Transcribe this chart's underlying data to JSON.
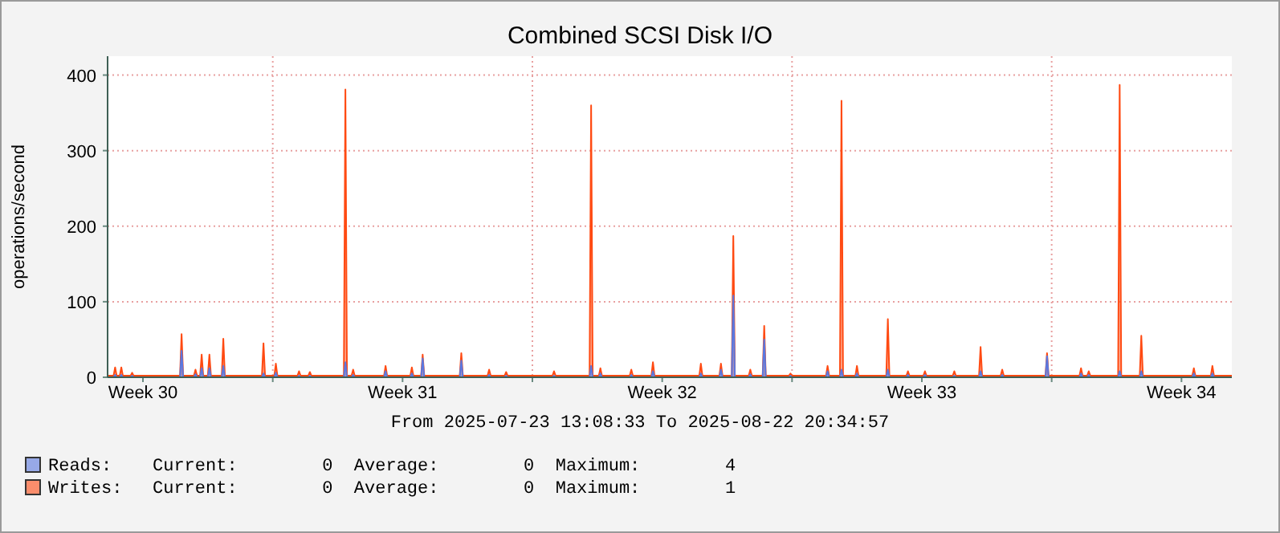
{
  "chart_data": {
    "type": "area",
    "title": "Combined SCSI Disk I/O",
    "ylabel": "operations/second",
    "annotations": [
      "From 2025-07-23 13:08:33 To 2025-08-22 20:34:57",
      "Current:        0  Average:        0  Maximum:        4",
      "Current:        0  Average:        0  Maximum:        1"
    ],
    "xlim": [
      "2025-07-23T13:08",
      "2025-08-22T20:34"
    ],
    "xticks": [
      {
        "value": "2025-07-24T12:00",
        "label": "Week 30"
      },
      {
        "value": "2025-07-28T00:00",
        "label": null
      },
      {
        "value": "2025-07-31T12:00",
        "label": "Week 31"
      },
      {
        "value": "2025-08-04T00:00",
        "label": null
      },
      {
        "value": "2025-08-07T12:00",
        "label": "Week 32"
      },
      {
        "value": "2025-08-11T00:00",
        "label": null
      },
      {
        "value": "2025-08-14T12:00",
        "label": "Week 33"
      },
      {
        "value": "2025-08-18T00:00",
        "label": null
      },
      {
        "value": "2025-08-21T12:00",
        "label": "Week 34"
      }
    ],
    "ylim": [
      0,
      425
    ],
    "yticks": [
      0,
      100,
      200,
      300,
      400
    ],
    "grid": true,
    "legend": "bottom left",
    "x": [
      "2025-07-23T13:08",
      "2025-07-23T17:00",
      "2025-07-23T18:00",
      "2025-07-23T19:00",
      "2025-07-23T21:00",
      "2025-07-23T22:00",
      "2025-07-23T23:00",
      "2025-07-24T04:00",
      "2025-07-24T05:00",
      "2025-07-24T06:00",
      "2025-07-25T12:00",
      "2025-07-25T13:00",
      "2025-07-25T14:00",
      "2025-07-25T21:00",
      "2025-07-25T22:00",
      "2025-07-25T23:00",
      "2025-07-26T01:00",
      "2025-07-26T02:00",
      "2025-07-26T03:00",
      "2025-07-26T06:00",
      "2025-07-26T07:00",
      "2025-07-26T08:00",
      "2025-07-26T15:00",
      "2025-07-26T16:00",
      "2025-07-26T17:00",
      "2025-07-27T17:00",
      "2025-07-27T18:00",
      "2025-07-27T19:00",
      "2025-07-28T01:00",
      "2025-07-28T02:00",
      "2025-07-28T03:00",
      "2025-07-28T16:00",
      "2025-07-28T17:00",
      "2025-07-28T18:00",
      "2025-07-28T23:00",
      "2025-07-29T00:00",
      "2025-07-29T01:00",
      "2025-07-29T22:00",
      "2025-07-29T23:00",
      "2025-07-30T00:00",
      "2025-07-30T03:00",
      "2025-07-30T04:00",
      "2025-07-30T05:00",
      "2025-07-31T00:00",
      "2025-07-31T01:00",
      "2025-07-31T02:00",
      "2025-07-31T17:00",
      "2025-07-31T18:00",
      "2025-07-31T19:00",
      "2025-08-01T00:00",
      "2025-08-01T01:00",
      "2025-08-01T02:00",
      "2025-08-02T01:00",
      "2025-08-02T02:00",
      "2025-08-02T03:00",
      "2025-08-02T19:00",
      "2025-08-02T20:00",
      "2025-08-02T21:00",
      "2025-08-03T06:00",
      "2025-08-03T07:00",
      "2025-08-03T08:00",
      "2025-08-04T13:00",
      "2025-08-04T14:00",
      "2025-08-04T15:00",
      "2025-08-05T13:00",
      "2025-08-05T14:00",
      "2025-08-05T15:00",
      "2025-08-05T19:00",
      "2025-08-05T20:00",
      "2025-08-05T21:00",
      "2025-08-06T15:00",
      "2025-08-06T16:00",
      "2025-08-06T17:00",
      "2025-08-07T05:00",
      "2025-08-07T06:00",
      "2025-08-07T07:00",
      "2025-08-08T12:00",
      "2025-08-08T13:00",
      "2025-08-08T14:00",
      "2025-08-09T01:00",
      "2025-08-09T02:00",
      "2025-08-09T03:00",
      "2025-08-09T09:00",
      "2025-08-09T10:00",
      "2025-08-09T11:00",
      "2025-08-09T20:00",
      "2025-08-09T21:00",
      "2025-08-09T22:00",
      "2025-08-10T05:00",
      "2025-08-10T06:00",
      "2025-08-10T07:00",
      "2025-08-10T22:00",
      "2025-08-10T23:00",
      "2025-08-11T00:00",
      "2025-08-11T22:00",
      "2025-08-11T23:00",
      "2025-08-12T00:00",
      "2025-08-12T07:00",
      "2025-08-12T08:00",
      "2025-08-12T09:00",
      "2025-08-12T17:00",
      "2025-08-12T18:00",
      "2025-08-12T19:00",
      "2025-08-13T13:00",
      "2025-08-13T14:00",
      "2025-08-13T15:00",
      "2025-08-14T02:00",
      "2025-08-14T03:00",
      "2025-08-14T04:00",
      "2025-08-14T13:00",
      "2025-08-14T14:00",
      "2025-08-14T15:00",
      "2025-08-15T08:00",
      "2025-08-15T09:00",
      "2025-08-15T10:00",
      "2025-08-16T01:00",
      "2025-08-16T02:00",
      "2025-08-16T03:00",
      "2025-08-16T15:00",
      "2025-08-16T16:00",
      "2025-08-16T17:00",
      "2025-08-17T20:00",
      "2025-08-17T21:00",
      "2025-08-17T22:00",
      "2025-08-18T18:00",
      "2025-08-18T19:00",
      "2025-08-18T20:00",
      "2025-08-18T23:00",
      "2025-08-19T00:00",
      "2025-08-19T01:00",
      "2025-08-19T19:00",
      "2025-08-19T20:00",
      "2025-08-19T21:00",
      "2025-08-20T09:00",
      "2025-08-20T10:00",
      "2025-08-20T11:00",
      "2025-08-21T19:00",
      "2025-08-21T20:00",
      "2025-08-21T21:00",
      "2025-08-22T07:00",
      "2025-08-22T08:00",
      "2025-08-22T09:00",
      "2025-08-22T20:34"
    ],
    "series": [
      {
        "name": "Writes:",
        "color": "#ff4a12",
        "values": [
          2,
          2,
          13,
          2,
          2,
          13,
          2,
          2,
          6,
          2,
          2,
          57,
          2,
          2,
          10,
          2,
          2,
          30,
          2,
          2,
          30,
          2,
          2,
          51,
          2,
          2,
          45,
          2,
          2,
          18,
          2,
          2,
          8,
          2,
          2,
          7,
          2,
          2,
          381,
          2,
          2,
          10,
          2,
          2,
          15,
          2,
          2,
          13,
          2,
          2,
          30,
          2,
          2,
          32,
          2,
          2,
          10,
          2,
          2,
          7,
          2,
          2,
          8,
          2,
          2,
          360,
          2,
          2,
          12,
          2,
          2,
          10,
          2,
          2,
          20,
          2,
          2,
          18,
          2,
          2,
          18,
          2,
          2,
          187,
          2,
          2,
          10,
          2,
          2,
          68,
          2,
          2,
          5,
          2,
          2,
          15,
          2,
          2,
          366,
          2,
          2,
          15,
          2,
          2,
          77,
          2,
          2,
          8,
          2,
          2,
          8,
          2,
          2,
          8,
          2,
          2,
          40,
          2,
          2,
          10,
          2,
          2,
          32,
          2,
          2,
          12,
          2,
          2,
          8,
          2,
          2,
          387,
          2,
          2,
          55,
          2,
          2,
          12,
          2,
          2,
          15,
          2,
          2
        ]
      },
      {
        "name": "Reads:",
        "color": "#5a78e0",
        "values": [
          0,
          0,
          3,
          0,
          0,
          3,
          0,
          0,
          2,
          0,
          0,
          35,
          0,
          0,
          4,
          0,
          0,
          12,
          0,
          0,
          12,
          0,
          0,
          15,
          0,
          0,
          5,
          0,
          0,
          6,
          0,
          0,
          2,
          0,
          0,
          2,
          0,
          0,
          20,
          0,
          0,
          3,
          0,
          0,
          8,
          0,
          0,
          5,
          0,
          0,
          25,
          0,
          0,
          22,
          0,
          0,
          3,
          0,
          0,
          2,
          0,
          0,
          2,
          0,
          0,
          15,
          0,
          0,
          5,
          0,
          0,
          3,
          0,
          0,
          8,
          0,
          0,
          5,
          0,
          0,
          10,
          0,
          0,
          108,
          0,
          0,
          4,
          0,
          0,
          50,
          0,
          0,
          2,
          0,
          0,
          8,
          0,
          0,
          10,
          0,
          0,
          5,
          0,
          0,
          10,
          0,
          0,
          3,
          0,
          0,
          3,
          0,
          0,
          2,
          0,
          0,
          8,
          0,
          0,
          3,
          0,
          0,
          28,
          0,
          0,
          5,
          0,
          0,
          3,
          0,
          0,
          8,
          0,
          0,
          8,
          0,
          0,
          5,
          0,
          0,
          5,
          0,
          0
        ]
      }
    ]
  }
}
